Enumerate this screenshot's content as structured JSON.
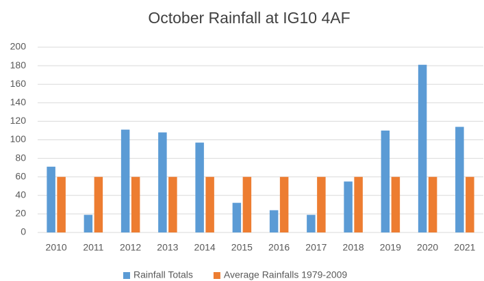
{
  "chart_data": {
    "type": "bar",
    "title": "October Rainfall at IG10 4AF",
    "categories": [
      "2010",
      "2011",
      "2012",
      "2013",
      "2014",
      "2015",
      "2016",
      "2017",
      "2018",
      "2019",
      "2020",
      "2021"
    ],
    "series": [
      {
        "name": "Rainfall Totals",
        "color": "#5b9bd5",
        "values": [
          71,
          19,
          111,
          108,
          97,
          32,
          24,
          19,
          55,
          110,
          181,
          114
        ]
      },
      {
        "name": "Average Rainfalls 1979-2009",
        "color": "#ed7d31",
        "values": [
          60,
          60,
          60,
          60,
          60,
          60,
          60,
          60,
          60,
          60,
          60,
          60
        ]
      }
    ],
    "ylim": [
      0,
      200
    ],
    "yticks": [
      0,
      20,
      40,
      60,
      80,
      100,
      120,
      140,
      160,
      180,
      200
    ],
    "grid": true,
    "legend": "bottom"
  }
}
